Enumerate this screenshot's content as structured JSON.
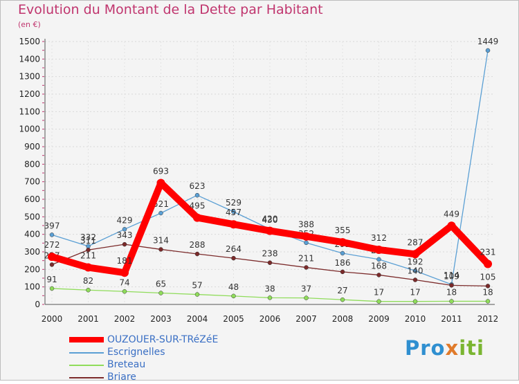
{
  "chart_data": {
    "type": "line",
    "title": "Evolution du Montant de la Dette par Habitant",
    "subtitle": "(en €)",
    "x": [
      "2000",
      "2001",
      "2002",
      "2003",
      "2004",
      "2005",
      "2006",
      "2007",
      "2008",
      "2009",
      "2010",
      "2011",
      "2012"
    ],
    "yticks": [
      0,
      100,
      200,
      300,
      400,
      500,
      600,
      700,
      800,
      900,
      1000,
      1100,
      1200,
      1300,
      1400,
      1500
    ],
    "ylim": [
      0,
      1500
    ],
    "series": [
      {
        "name": "Escrignelles",
        "color": "#5a9fd4",
        "values": [
          397,
          332,
          429,
          521,
          623,
          529,
          430,
          352,
          292,
          257,
          192,
          114,
          1449
        ]
      },
      {
        "name": "Briare",
        "color": "#7b2a2a",
        "values": [
          227,
          311,
          343,
          314,
          288,
          264,
          238,
          211,
          186,
          168,
          140,
          109,
          105
        ]
      },
      {
        "name": "Breteau",
        "color": "#8fdc5a",
        "values": [
          91,
          82,
          74,
          65,
          57,
          48,
          38,
          37,
          27,
          17,
          17,
          18,
          18
        ]
      },
      {
        "name": "OUZOUER-SUR-TRéZéE",
        "color": "#ff0000",
        "values": [
          272,
          211,
          181,
          693,
          495,
          457,
          420,
          388,
          355,
          312,
          287,
          449,
          231
        ]
      }
    ],
    "legend": [
      "OUZOUER-SUR-TRéZéE",
      "Escrignelles",
      "Breteau",
      "Briare"
    ]
  },
  "logo": {
    "p1": "Pro",
    "p2": "x",
    "p3": "iti"
  }
}
